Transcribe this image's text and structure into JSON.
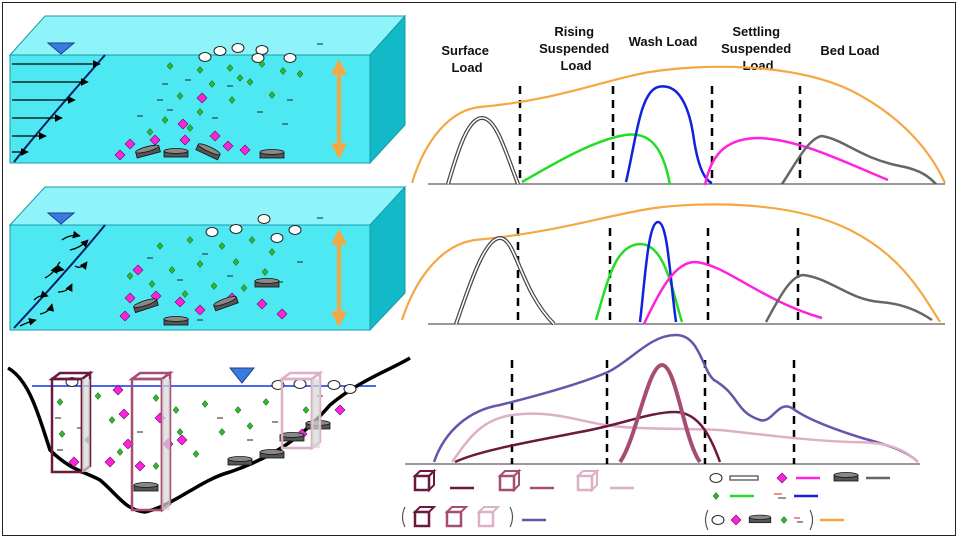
{
  "zones": [
    {
      "lines": [
        "Surface",
        "Load"
      ]
    },
    {
      "lines": [
        "Rising",
        "Suspended",
        "Load"
      ]
    },
    {
      "lines": [
        "Wash Load"
      ]
    },
    {
      "lines": [
        "Settling",
        "Suspended",
        "Load"
      ]
    },
    {
      "lines": [
        "Bed Load"
      ]
    }
  ],
  "colors": {
    "water": "#4ee8f2",
    "water_side": "#12b9c7",
    "water_top": "#8ff4fa",
    "surface": "#444444",
    "rising": "#22dd22",
    "wash": "#1122dd",
    "settling": "#ff22dd",
    "bed": "#666666",
    "total": "#f5a742",
    "profile_a": "#6b1a3e",
    "profile_b": "#a54d72",
    "profile_c": "#dcb0c5",
    "profile_mix": "#6655aa",
    "water_line": "#1133ee",
    "velocity_arrow": "#f5a742"
  },
  "legend_icons": [
    "dark-profile-box-icon",
    "medium-profile-box-icon",
    "light-profile-box-icon",
    "bubble-icon",
    "magenta-diamond-icon",
    "gray-disk-icon",
    "green-diamond-icon",
    "dash-particle-icon",
    "combined-profile-box-icon",
    "combined-particle-icon"
  ]
}
